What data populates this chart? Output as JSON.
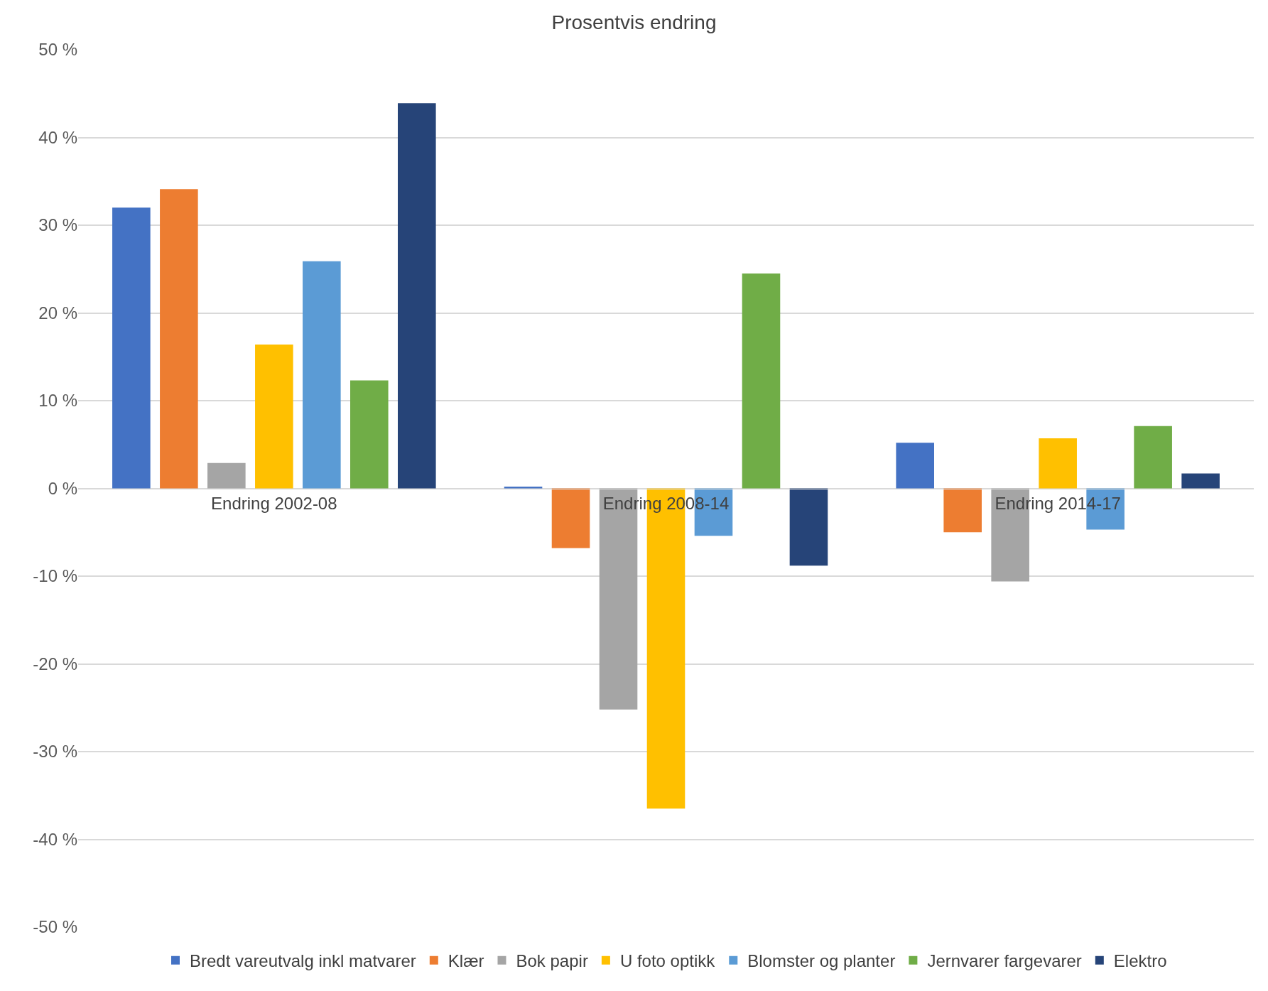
{
  "chart_data": {
    "type": "bar",
    "title": "Prosentvis endring",
    "categories": [
      "Endring 2002-08",
      "Endring 2008-14",
      "Endring 2014-17"
    ],
    "series": [
      {
        "name": "Bredt vareutvalg inkl matvarer",
        "color": "#4472c4",
        "values": [
          32.0,
          0.2,
          5.2
        ]
      },
      {
        "name": "Klær",
        "color": "#ed7d31",
        "values": [
          34.1,
          -6.8,
          -5.0
        ]
      },
      {
        "name": "Bok papir",
        "color": "#a5a5a5",
        "values": [
          2.9,
          -25.2,
          -10.6
        ]
      },
      {
        "name": "U foto optikk",
        "color": "#ffc000",
        "values": [
          16.4,
          -36.5,
          5.7
        ]
      },
      {
        "name": "Blomster og planter",
        "color": "#5b9bd5",
        "values": [
          25.9,
          -5.4,
          -4.7
        ]
      },
      {
        "name": "Jernvarer fargevarer",
        "color": "#70ad47",
        "values": [
          12.3,
          24.5,
          7.1
        ]
      },
      {
        "name": "Elektro",
        "color": "#264478",
        "values": [
          43.9,
          -8.8,
          1.7
        ]
      }
    ],
    "ylim": [
      -50,
      50
    ],
    "yticks": [
      {
        "value": -50,
        "label": "-50 %"
      },
      {
        "value": -40,
        "label": "-40 %"
      },
      {
        "value": -30,
        "label": "-30 %"
      },
      {
        "value": -20,
        "label": "-20 %"
      },
      {
        "value": -10,
        "label": "-10 %"
      },
      {
        "value": 0,
        "label": "0 %"
      },
      {
        "value": 10,
        "label": "10 %"
      },
      {
        "value": 20,
        "label": "20 %"
      },
      {
        "value": 30,
        "label": "30 %"
      },
      {
        "value": 40,
        "label": "40 %"
      },
      {
        "value": 50,
        "label": "50 %"
      }
    ],
    "grid": "y",
    "legend": "bottom"
  }
}
